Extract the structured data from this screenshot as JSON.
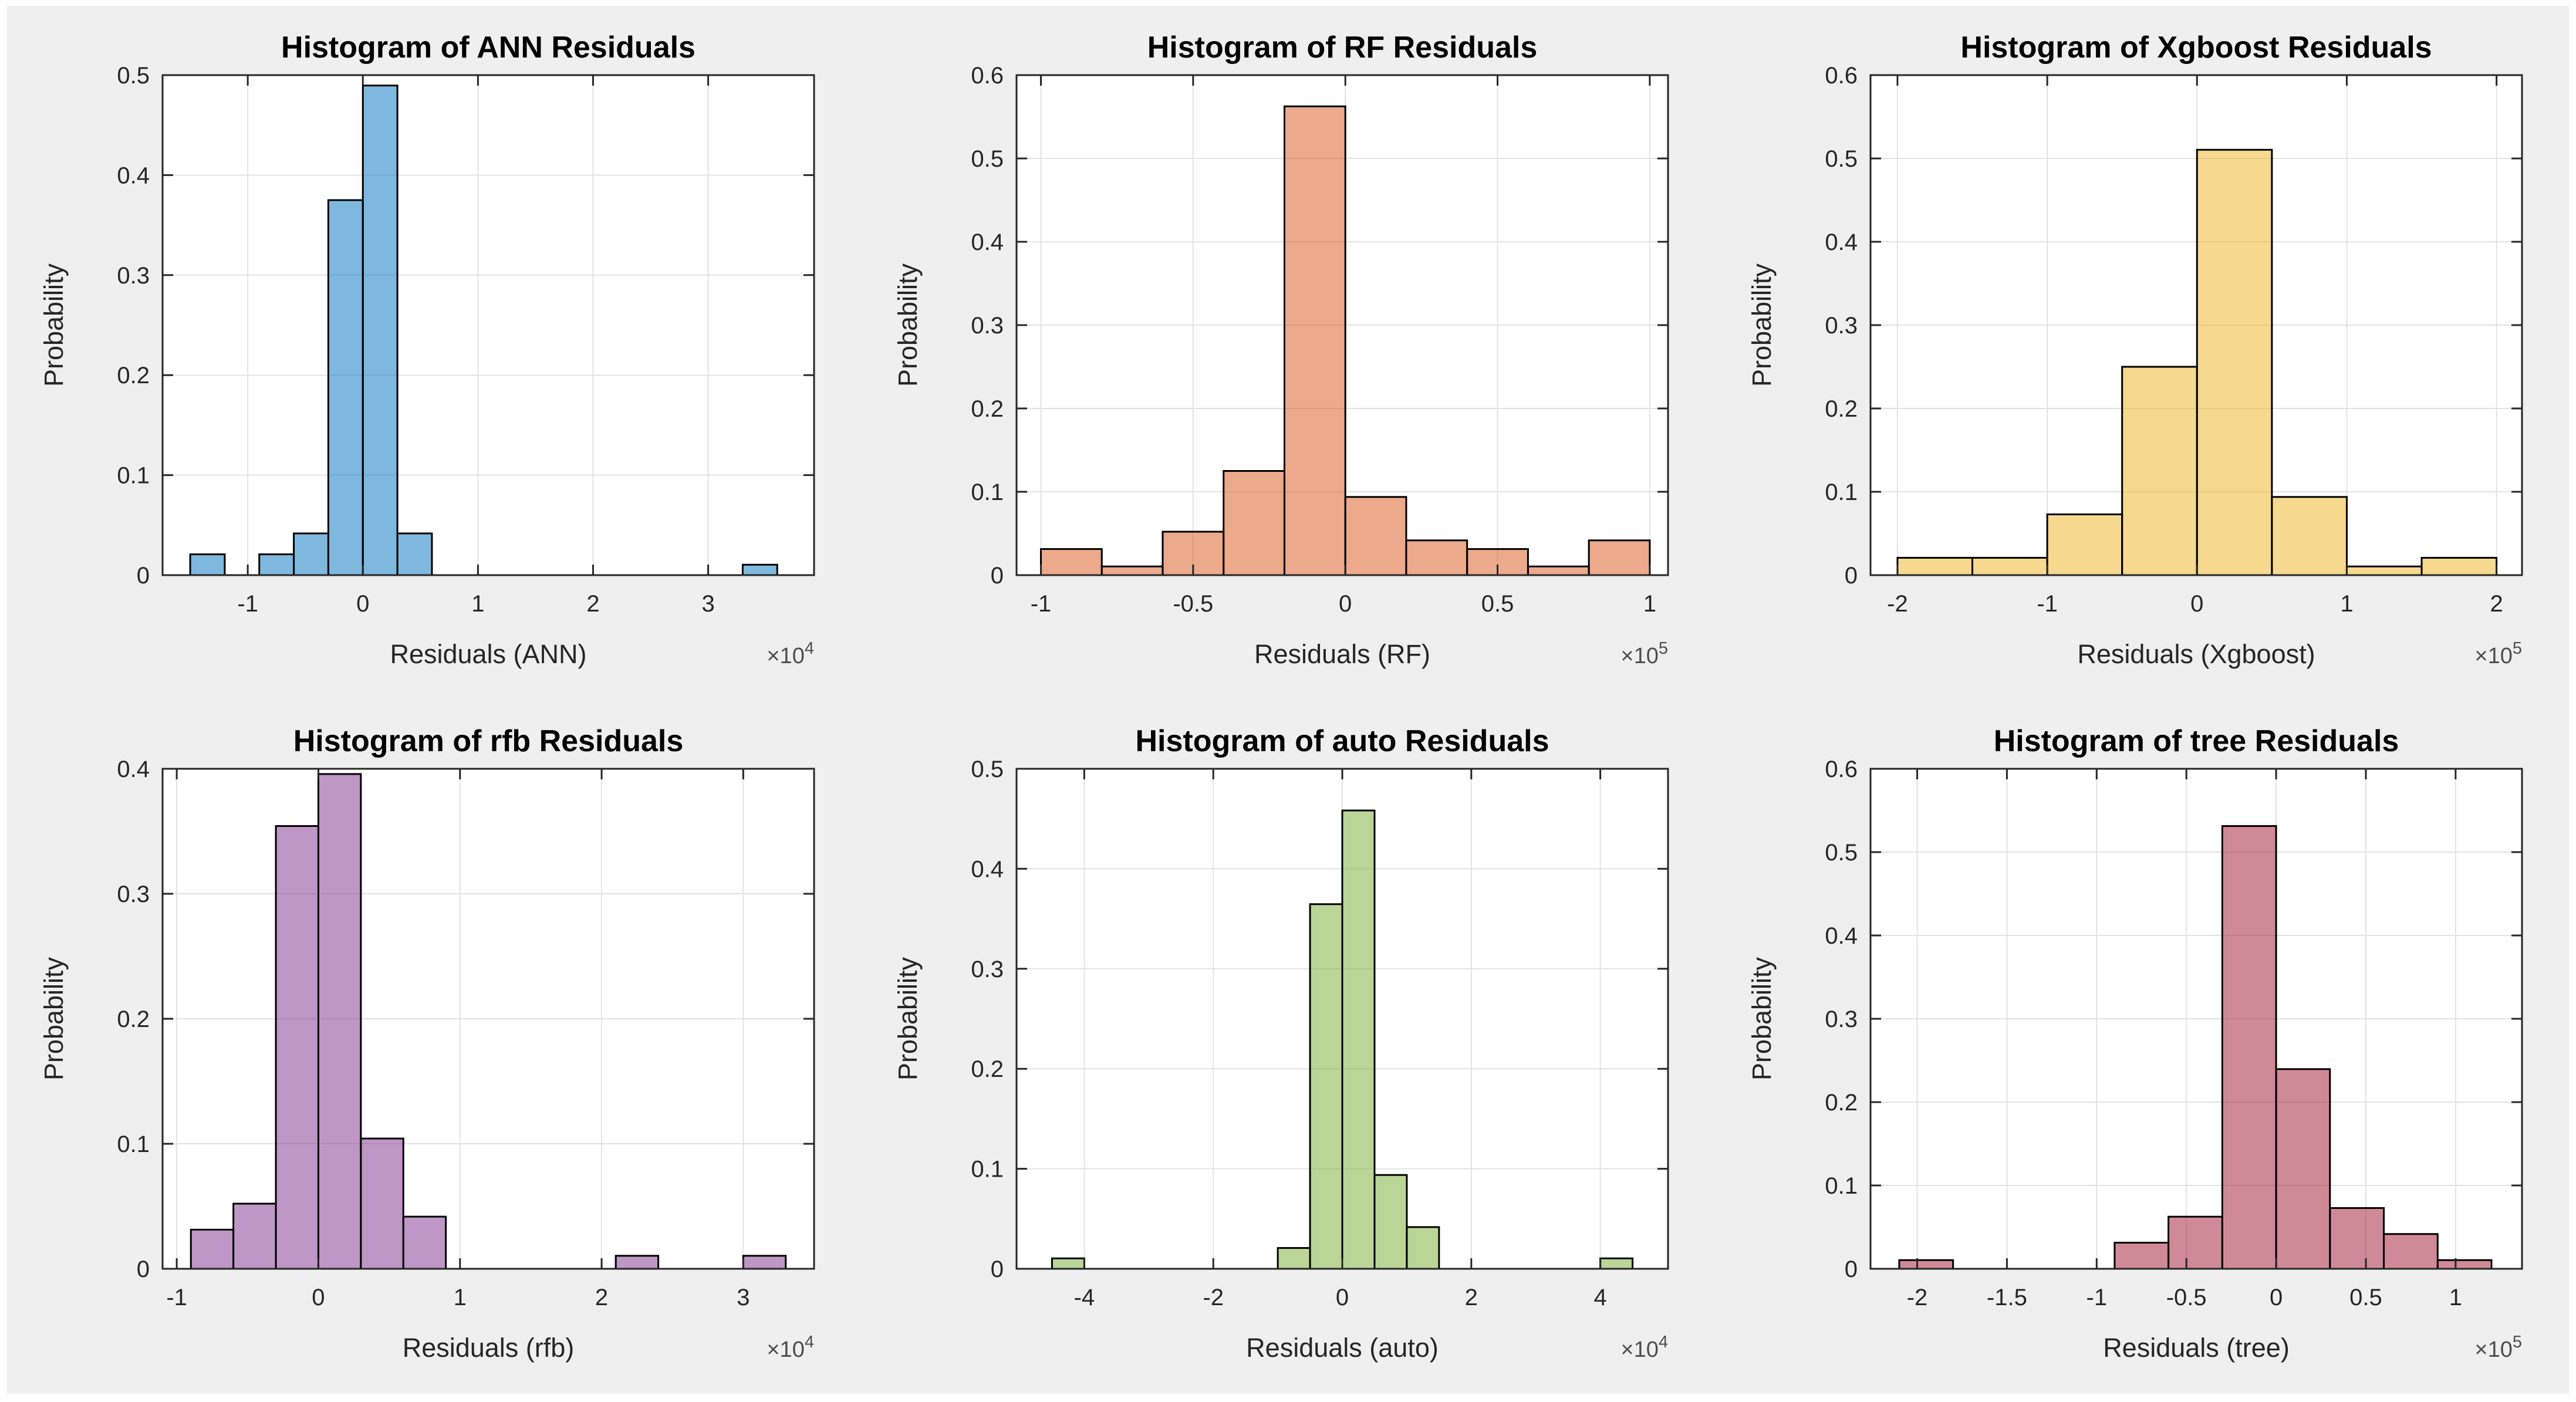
{
  "figure": {
    "page_background": "#FFFFFF",
    "background": "#EFEFEF",
    "plot_background": "#FFFFFF",
    "grid_color": "#E2E2E2",
    "axis_color": "#262626",
    "tick_label_color": "#262626",
    "title_color": "#000000",
    "bar_edge_color": "#000000",
    "bar_fill_opacity": 0.5,
    "rows": 2,
    "cols": 3
  },
  "chart_data": [
    {
      "type": "bar",
      "title": "Histogram of ANN Residuals",
      "xlabel": "Residuals (ANN)",
      "ylabel": "Probability",
      "offset_prefix": "×10",
      "exponent": "4",
      "color": "#0072BD",
      "xlim": [
        -1.74,
        3.92
      ],
      "ylim": [
        0,
        0.5
      ],
      "xticks": [
        -1,
        0,
        1,
        2,
        3
      ],
      "xtick_labels": [
        "-1",
        "0",
        "1",
        "2",
        "3"
      ],
      "yticks": [
        0,
        0.1,
        0.2,
        0.3,
        0.4,
        0.5
      ],
      "ytick_labels": [
        "0",
        "0.1",
        "0.2",
        "0.3",
        "0.4",
        "0.5"
      ],
      "grid": true,
      "bins": [
        {
          "x0": -1.5,
          "x1": -1.2,
          "p": 0.0208
        },
        {
          "x0": -0.9,
          "x1": -0.6,
          "p": 0.0208
        },
        {
          "x0": -0.6,
          "x1": -0.3,
          "p": 0.0417
        },
        {
          "x0": -0.3,
          "x1": 0.0,
          "p": 0.375
        },
        {
          "x0": 0.0,
          "x1": 0.3,
          "p": 0.4896
        },
        {
          "x0": 0.3,
          "x1": 0.6,
          "p": 0.0417
        },
        {
          "x0": 3.3,
          "x1": 3.6,
          "p": 0.0104
        }
      ]
    },
    {
      "type": "bar",
      "title": "Histogram of RF Residuals",
      "xlabel": "Residuals (RF)",
      "ylabel": "Probability",
      "offset_prefix": "×10",
      "exponent": "5",
      "color": "#D95319",
      "xlim": [
        -1.08,
        1.06
      ],
      "ylim": [
        0,
        0.6
      ],
      "xticks": [
        -1,
        -0.5,
        0,
        0.5,
        1
      ],
      "xtick_labels": [
        "-1",
        "-0.5",
        "0",
        "0.5",
        "1"
      ],
      "yticks": [
        0,
        0.1,
        0.2,
        0.3,
        0.4,
        0.5,
        0.6
      ],
      "ytick_labels": [
        "0",
        "0.1",
        "0.2",
        "0.3",
        "0.4",
        "0.5",
        "0.6"
      ],
      "grid": true,
      "bins": [
        {
          "x0": -1.0,
          "x1": -0.8,
          "p": 0.0313
        },
        {
          "x0": -0.8,
          "x1": -0.6,
          "p": 0.0104
        },
        {
          "x0": -0.6,
          "x1": -0.4,
          "p": 0.0521
        },
        {
          "x0": -0.4,
          "x1": -0.2,
          "p": 0.125
        },
        {
          "x0": -0.2,
          "x1": 0.0,
          "p": 0.5625
        },
        {
          "x0": 0.0,
          "x1": 0.2,
          "p": 0.0938
        },
        {
          "x0": 0.2,
          "x1": 0.4,
          "p": 0.0417
        },
        {
          "x0": 0.4,
          "x1": 0.6,
          "p": 0.0313
        },
        {
          "x0": 0.6,
          "x1": 0.8,
          "p": 0.0104
        },
        {
          "x0": 0.8,
          "x1": 1.0,
          "p": 0.0417
        }
      ]
    },
    {
      "type": "bar",
      "title": "Histogram of Xgboost Residuals",
      "xlabel": "Residuals (Xgboost)",
      "ylabel": "Probability",
      "offset_prefix": "×10",
      "exponent": "5",
      "color": "#EDB120",
      "xlim": [
        -2.18,
        2.17
      ],
      "ylim": [
        0,
        0.6
      ],
      "xticks": [
        -2,
        -1,
        0,
        1,
        2
      ],
      "xtick_labels": [
        "-2",
        "-1",
        "0",
        "1",
        "2"
      ],
      "yticks": [
        0,
        0.1,
        0.2,
        0.3,
        0.4,
        0.5,
        0.6
      ],
      "ytick_labels": [
        "0",
        "0.1",
        "0.2",
        "0.3",
        "0.4",
        "0.5",
        "0.6"
      ],
      "grid": true,
      "bins": [
        {
          "x0": -2.0,
          "x1": -1.5,
          "p": 0.0208
        },
        {
          "x0": -1.5,
          "x1": -1.0,
          "p": 0.0208
        },
        {
          "x0": -1.0,
          "x1": -0.5,
          "p": 0.0729
        },
        {
          "x0": -0.5,
          "x1": 0.0,
          "p": 0.25
        },
        {
          "x0": 0.0,
          "x1": 0.5,
          "p": 0.5104
        },
        {
          "x0": 0.5,
          "x1": 1.0,
          "p": 0.0938
        },
        {
          "x0": 1.0,
          "x1": 1.5,
          "p": 0.0104
        },
        {
          "x0": 1.5,
          "x1": 2.0,
          "p": 0.0208
        }
      ]
    },
    {
      "type": "bar",
      "title": "Histogram of rfb Residuals",
      "xlabel": "Residuals (rfb)",
      "ylabel": "Probability",
      "offset_prefix": "×10",
      "exponent": "4",
      "color": "#7E2F8E",
      "xlim": [
        -1.1,
        3.5
      ],
      "ylim": [
        0,
        0.4
      ],
      "xticks": [
        -1,
        0,
        1,
        2,
        3
      ],
      "xtick_labels": [
        "-1",
        "0",
        "1",
        "2",
        "3"
      ],
      "yticks": [
        0,
        0.1,
        0.2,
        0.3,
        0.4
      ],
      "ytick_labels": [
        "0",
        "0.1",
        "0.2",
        "0.3",
        "0.4"
      ],
      "grid": true,
      "bins": [
        {
          "x0": -0.9,
          "x1": -0.6,
          "p": 0.0313
        },
        {
          "x0": -0.6,
          "x1": -0.3,
          "p": 0.0521
        },
        {
          "x0": -0.3,
          "x1": 0.0,
          "p": 0.3542
        },
        {
          "x0": 0.0,
          "x1": 0.3,
          "p": 0.3958
        },
        {
          "x0": 0.3,
          "x1": 0.6,
          "p": 0.1042
        },
        {
          "x0": 0.6,
          "x1": 0.9,
          "p": 0.0417
        },
        {
          "x0": 2.1,
          "x1": 2.4,
          "p": 0.0104
        },
        {
          "x0": 3.0,
          "x1": 3.3,
          "p": 0.0104
        }
      ]
    },
    {
      "type": "bar",
      "title": "Histogram of auto Residuals",
      "xlabel": "Residuals (auto)",
      "ylabel": "Probability",
      "offset_prefix": "×10",
      "exponent": "4",
      "color": "#77AC30",
      "xlim": [
        -5.05,
        5.05
      ],
      "ylim": [
        0,
        0.5
      ],
      "xticks": [
        -4,
        -2,
        0,
        2,
        4
      ],
      "xtick_labels": [
        "-4",
        "-2",
        "0",
        "2",
        "4"
      ],
      "yticks": [
        0,
        0.1,
        0.2,
        0.3,
        0.4,
        0.5
      ],
      "ytick_labels": [
        "0",
        "0.1",
        "0.2",
        "0.3",
        "0.4",
        "0.5"
      ],
      "grid": true,
      "bins": [
        {
          "x0": -4.5,
          "x1": -4.0,
          "p": 0.0104
        },
        {
          "x0": -1.0,
          "x1": -0.5,
          "p": 0.0208
        },
        {
          "x0": -0.5,
          "x1": 0.0,
          "p": 0.3646
        },
        {
          "x0": 0.0,
          "x1": 0.5,
          "p": 0.4583
        },
        {
          "x0": 0.5,
          "x1": 1.0,
          "p": 0.0938
        },
        {
          "x0": 1.0,
          "x1": 1.5,
          "p": 0.0417
        },
        {
          "x0": 4.0,
          "x1": 4.5,
          "p": 0.0104
        }
      ]
    },
    {
      "type": "bar",
      "title": "Histogram of tree Residuals",
      "xlabel": "Residuals (tree)",
      "ylabel": "Probability",
      "offset_prefix": "×10",
      "exponent": "5",
      "color": "#A2142F",
      "xlim": [
        -2.26,
        1.37
      ],
      "ylim": [
        0,
        0.6
      ],
      "xticks": [
        -2,
        -1.5,
        -1,
        -0.5,
        0,
        0.5,
        1
      ],
      "xtick_labels": [
        "-2",
        "-1.5",
        "-1",
        "-0.5",
        "0",
        "0.5",
        "1"
      ],
      "yticks": [
        0,
        0.1,
        0.2,
        0.3,
        0.4,
        0.5,
        0.6
      ],
      "ytick_labels": [
        "0",
        "0.1",
        "0.2",
        "0.3",
        "0.4",
        "0.5",
        "0.6"
      ],
      "grid": true,
      "bins": [
        {
          "x0": -2.1,
          "x1": -1.8,
          "p": 0.0104
        },
        {
          "x0": -0.9,
          "x1": -0.6,
          "p": 0.0313
        },
        {
          "x0": -0.6,
          "x1": -0.3,
          "p": 0.0625
        },
        {
          "x0": -0.3,
          "x1": 0.0,
          "p": 0.5313
        },
        {
          "x0": 0.0,
          "x1": 0.3,
          "p": 0.2396
        },
        {
          "x0": 0.3,
          "x1": 0.6,
          "p": 0.0729
        },
        {
          "x0": 0.6,
          "x1": 0.9,
          "p": 0.0417
        },
        {
          "x0": 0.9,
          "x1": 1.2,
          "p": 0.0104
        }
      ]
    }
  ]
}
